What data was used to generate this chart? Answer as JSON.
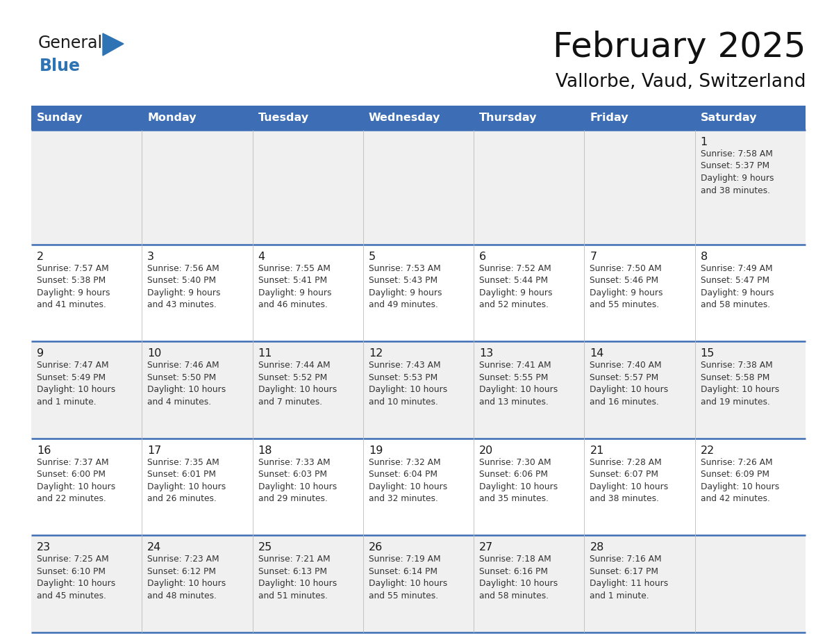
{
  "title": "February 2025",
  "subtitle": "Vallorbe, Vaud, Switzerland",
  "header_color": "#3D6EB5",
  "header_text_color": "#FFFFFF",
  "bg_color": "#FFFFFF",
  "cell_alt_color": "#F0F0F0",
  "border_color": "#3D6EB5",
  "text_color": "#333333",
  "day_num_color": "#1a1a1a",
  "logo_general_color": "#1a1a1a",
  "logo_blue_color": "#2E74B5",
  "logo_tri_color": "#2E74B5",
  "day_headers": [
    "Sunday",
    "Monday",
    "Tuesday",
    "Wednesday",
    "Thursday",
    "Friday",
    "Saturday"
  ],
  "row_colors": [
    "#F0F0F0",
    "#FFFFFF",
    "#F0F0F0",
    "#FFFFFF",
    "#F0F0F0"
  ],
  "weeks": [
    [
      {
        "day": "",
        "info": ""
      },
      {
        "day": "",
        "info": ""
      },
      {
        "day": "",
        "info": ""
      },
      {
        "day": "",
        "info": ""
      },
      {
        "day": "",
        "info": ""
      },
      {
        "day": "",
        "info": ""
      },
      {
        "day": "1",
        "info": "Sunrise: 7:58 AM\nSunset: 5:37 PM\nDaylight: 9 hours\nand 38 minutes."
      }
    ],
    [
      {
        "day": "2",
        "info": "Sunrise: 7:57 AM\nSunset: 5:38 PM\nDaylight: 9 hours\nand 41 minutes."
      },
      {
        "day": "3",
        "info": "Sunrise: 7:56 AM\nSunset: 5:40 PM\nDaylight: 9 hours\nand 43 minutes."
      },
      {
        "day": "4",
        "info": "Sunrise: 7:55 AM\nSunset: 5:41 PM\nDaylight: 9 hours\nand 46 minutes."
      },
      {
        "day": "5",
        "info": "Sunrise: 7:53 AM\nSunset: 5:43 PM\nDaylight: 9 hours\nand 49 minutes."
      },
      {
        "day": "6",
        "info": "Sunrise: 7:52 AM\nSunset: 5:44 PM\nDaylight: 9 hours\nand 52 minutes."
      },
      {
        "day": "7",
        "info": "Sunrise: 7:50 AM\nSunset: 5:46 PM\nDaylight: 9 hours\nand 55 minutes."
      },
      {
        "day": "8",
        "info": "Sunrise: 7:49 AM\nSunset: 5:47 PM\nDaylight: 9 hours\nand 58 minutes."
      }
    ],
    [
      {
        "day": "9",
        "info": "Sunrise: 7:47 AM\nSunset: 5:49 PM\nDaylight: 10 hours\nand 1 minute."
      },
      {
        "day": "10",
        "info": "Sunrise: 7:46 AM\nSunset: 5:50 PM\nDaylight: 10 hours\nand 4 minutes."
      },
      {
        "day": "11",
        "info": "Sunrise: 7:44 AM\nSunset: 5:52 PM\nDaylight: 10 hours\nand 7 minutes."
      },
      {
        "day": "12",
        "info": "Sunrise: 7:43 AM\nSunset: 5:53 PM\nDaylight: 10 hours\nand 10 minutes."
      },
      {
        "day": "13",
        "info": "Sunrise: 7:41 AM\nSunset: 5:55 PM\nDaylight: 10 hours\nand 13 minutes."
      },
      {
        "day": "14",
        "info": "Sunrise: 7:40 AM\nSunset: 5:57 PM\nDaylight: 10 hours\nand 16 minutes."
      },
      {
        "day": "15",
        "info": "Sunrise: 7:38 AM\nSunset: 5:58 PM\nDaylight: 10 hours\nand 19 minutes."
      }
    ],
    [
      {
        "day": "16",
        "info": "Sunrise: 7:37 AM\nSunset: 6:00 PM\nDaylight: 10 hours\nand 22 minutes."
      },
      {
        "day": "17",
        "info": "Sunrise: 7:35 AM\nSunset: 6:01 PM\nDaylight: 10 hours\nand 26 minutes."
      },
      {
        "day": "18",
        "info": "Sunrise: 7:33 AM\nSunset: 6:03 PM\nDaylight: 10 hours\nand 29 minutes."
      },
      {
        "day": "19",
        "info": "Sunrise: 7:32 AM\nSunset: 6:04 PM\nDaylight: 10 hours\nand 32 minutes."
      },
      {
        "day": "20",
        "info": "Sunrise: 7:30 AM\nSunset: 6:06 PM\nDaylight: 10 hours\nand 35 minutes."
      },
      {
        "day": "21",
        "info": "Sunrise: 7:28 AM\nSunset: 6:07 PM\nDaylight: 10 hours\nand 38 minutes."
      },
      {
        "day": "22",
        "info": "Sunrise: 7:26 AM\nSunset: 6:09 PM\nDaylight: 10 hours\nand 42 minutes."
      }
    ],
    [
      {
        "day": "23",
        "info": "Sunrise: 7:25 AM\nSunset: 6:10 PM\nDaylight: 10 hours\nand 45 minutes."
      },
      {
        "day": "24",
        "info": "Sunrise: 7:23 AM\nSunset: 6:12 PM\nDaylight: 10 hours\nand 48 minutes."
      },
      {
        "day": "25",
        "info": "Sunrise: 7:21 AM\nSunset: 6:13 PM\nDaylight: 10 hours\nand 51 minutes."
      },
      {
        "day": "26",
        "info": "Sunrise: 7:19 AM\nSunset: 6:14 PM\nDaylight: 10 hours\nand 55 minutes."
      },
      {
        "day": "27",
        "info": "Sunrise: 7:18 AM\nSunset: 6:16 PM\nDaylight: 10 hours\nand 58 minutes."
      },
      {
        "day": "28",
        "info": "Sunrise: 7:16 AM\nSunset: 6:17 PM\nDaylight: 11 hours\nand 1 minute."
      },
      {
        "day": "",
        "info": ""
      }
    ]
  ]
}
